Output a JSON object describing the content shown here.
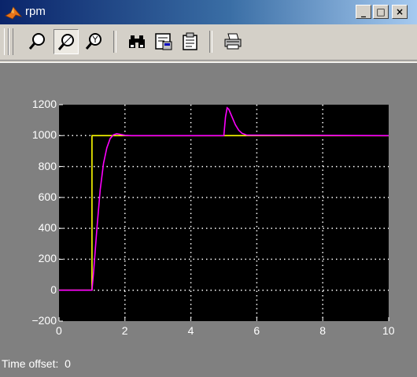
{
  "window": {
    "title": "rpm"
  },
  "title_buttons": {
    "minimize": "_",
    "maximize": "□",
    "close": "×"
  },
  "toolbar": {
    "buttons": [
      {
        "name": "zoom",
        "icon": "magnifier-icon",
        "pressed": false
      },
      {
        "name": "zoom-x",
        "icon": "zoom-x-icon",
        "pressed": true
      },
      {
        "name": "zoom-y",
        "icon": "zoom-y-icon",
        "pressed": false
      },
      {
        "name": "autoscale",
        "icon": "binoculars-icon",
        "pressed": false
      },
      {
        "name": "save-axes",
        "icon": "save-axes-icon",
        "pressed": false
      },
      {
        "name": "restore-axes",
        "icon": "restore-axes-icon",
        "pressed": false
      },
      {
        "name": "print",
        "icon": "printer-icon",
        "pressed": false
      }
    ]
  },
  "scope": {
    "time_offset_label": "Time offset:",
    "time_offset_value": "0"
  },
  "colors": {
    "background": "#000000",
    "grid": "#ffffff",
    "setpoint": "#ffff00",
    "speed": "#ff00ff"
  },
  "chart_data": {
    "type": "line",
    "xlim": [
      0,
      10
    ],
    "ylim": [
      -200,
      1200
    ],
    "x_ticks": [
      "0",
      "2",
      "4",
      "6",
      "8",
      "10"
    ],
    "y_ticks": [
      "1200",
      "1000",
      "800",
      "600",
      "400",
      "200",
      "0",
      "−200"
    ],
    "grid": true,
    "series": [
      {
        "color": "#ffff00",
        "x": [
          0,
          1.0,
          1.0,
          5.0,
          5.0,
          5.6,
          10
        ],
        "y": [
          0,
          0,
          1000,
          1000,
          1000,
          1000,
          1000
        ]
      },
      {
        "color": "#ff00ff",
        "x": [
          0,
          1.0,
          1.05,
          1.15,
          1.25,
          1.35,
          1.45,
          1.55,
          1.65,
          1.75,
          1.85,
          2.0,
          2.2,
          5.0,
          5.05,
          5.1,
          5.15,
          5.25,
          5.35,
          5.45,
          5.55,
          5.7,
          10
        ],
        "y": [
          0,
          0,
          120,
          400,
          650,
          820,
          920,
          980,
          1005,
          1012,
          1008,
          1002,
          1000,
          1000,
          1120,
          1180,
          1170,
          1120,
          1070,
          1035,
          1015,
          1003,
          1000
        ]
      }
    ]
  }
}
